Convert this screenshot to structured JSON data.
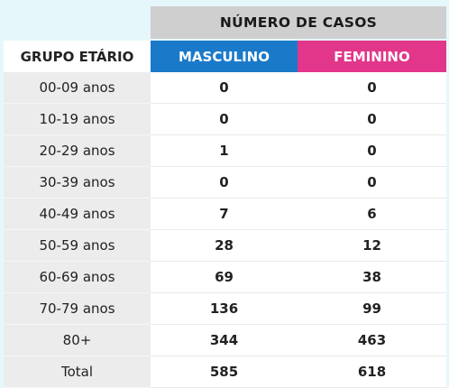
{
  "header": {
    "title": "NÚMERO DE CASOS",
    "group_label": "GRUPO ETÁRIO",
    "male_label": "MASCULINO",
    "female_label": "FEMININO"
  },
  "colors": {
    "male": "#1a7ac9",
    "female": "#e2368a",
    "header_bg": "#cfcfcf",
    "page_bg": "#e6f7fc"
  },
  "rows": [
    {
      "group": "00-09 anos",
      "male": "0",
      "female": "0"
    },
    {
      "group": "10-19 anos",
      "male": "0",
      "female": "0"
    },
    {
      "group": "20-29 anos",
      "male": "1",
      "female": "0"
    },
    {
      "group": "30-39 anos",
      "male": "0",
      "female": "0"
    },
    {
      "group": "40-49 anos",
      "male": "7",
      "female": "6"
    },
    {
      "group": "50-59 anos",
      "male": "28",
      "female": "12"
    },
    {
      "group": "60-69 anos",
      "male": "69",
      "female": "38"
    },
    {
      "group": "70-79 anos",
      "male": "136",
      "female": "99"
    },
    {
      "group": "80+",
      "male": "344",
      "female": "463"
    },
    {
      "group": "Total",
      "male": "585",
      "female": "618"
    }
  ],
  "chart_data": {
    "type": "table",
    "title": "NÚMERO DE CASOS",
    "columns": [
      "GRUPO ETÁRIO",
      "MASCULINO",
      "FEMININO"
    ],
    "categories": [
      "00-09 anos",
      "10-19 anos",
      "20-29 anos",
      "30-39 anos",
      "40-49 anos",
      "50-59 anos",
      "60-69 anos",
      "70-79 anos",
      "80+",
      "Total"
    ],
    "series": [
      {
        "name": "MASCULINO",
        "values": [
          0,
          0,
          1,
          0,
          7,
          28,
          69,
          136,
          344,
          585
        ]
      },
      {
        "name": "FEMININO",
        "values": [
          0,
          0,
          0,
          0,
          6,
          12,
          38,
          99,
          463,
          618
        ]
      }
    ]
  }
}
